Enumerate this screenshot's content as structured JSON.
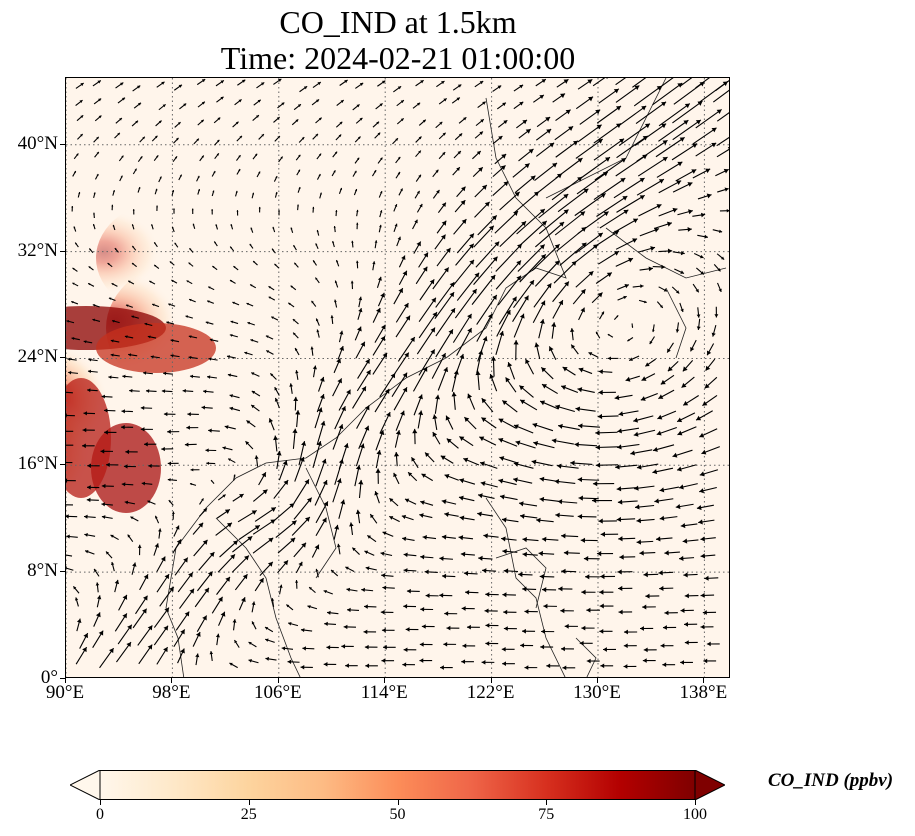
{
  "title": {
    "line1": "CO_IND at 1.5km",
    "line2": "Time: 2024-02-21 01:00:00"
  },
  "map": {
    "lon_range": [
      90,
      140
    ],
    "lat_range": [
      0,
      45
    ],
    "lat_ticks": [
      {
        "value": 0,
        "label": "0°"
      },
      {
        "value": 8,
        "label": "8°N"
      },
      {
        "value": 16,
        "label": "16°N"
      },
      {
        "value": 24,
        "label": "24°N"
      },
      {
        "value": 32,
        "label": "32°N"
      },
      {
        "value": 40,
        "label": "40°N"
      }
    ],
    "lon_ticks": [
      {
        "value": 90,
        "label": "90°E"
      },
      {
        "value": 98,
        "label": "98°E"
      },
      {
        "value": 106,
        "label": "106°E"
      },
      {
        "value": 114,
        "label": "114°E"
      },
      {
        "value": 122,
        "label": "122°E"
      },
      {
        "value": 130,
        "label": "130°E"
      },
      {
        "value": 138,
        "label": "138°E"
      }
    ],
    "gridlines": "dotted",
    "vectors": "wind"
  },
  "colorbar": {
    "label": "CO_IND (ppbv)",
    "min": 0,
    "max": 100,
    "extend": "both",
    "colormap": "OrRd",
    "ticks": [
      {
        "value": 0,
        "label": "0"
      },
      {
        "value": 25,
        "label": "25"
      },
      {
        "value": 50,
        "label": "50"
      },
      {
        "value": 75,
        "label": "75"
      },
      {
        "value": 100,
        "label": "100"
      }
    ],
    "colors": [
      "#fff7ec",
      "#fee8c8",
      "#fdd49e",
      "#fdbb84",
      "#fc8d59",
      "#ef6548",
      "#d7301f",
      "#b30000",
      "#7f0000"
    ]
  }
}
